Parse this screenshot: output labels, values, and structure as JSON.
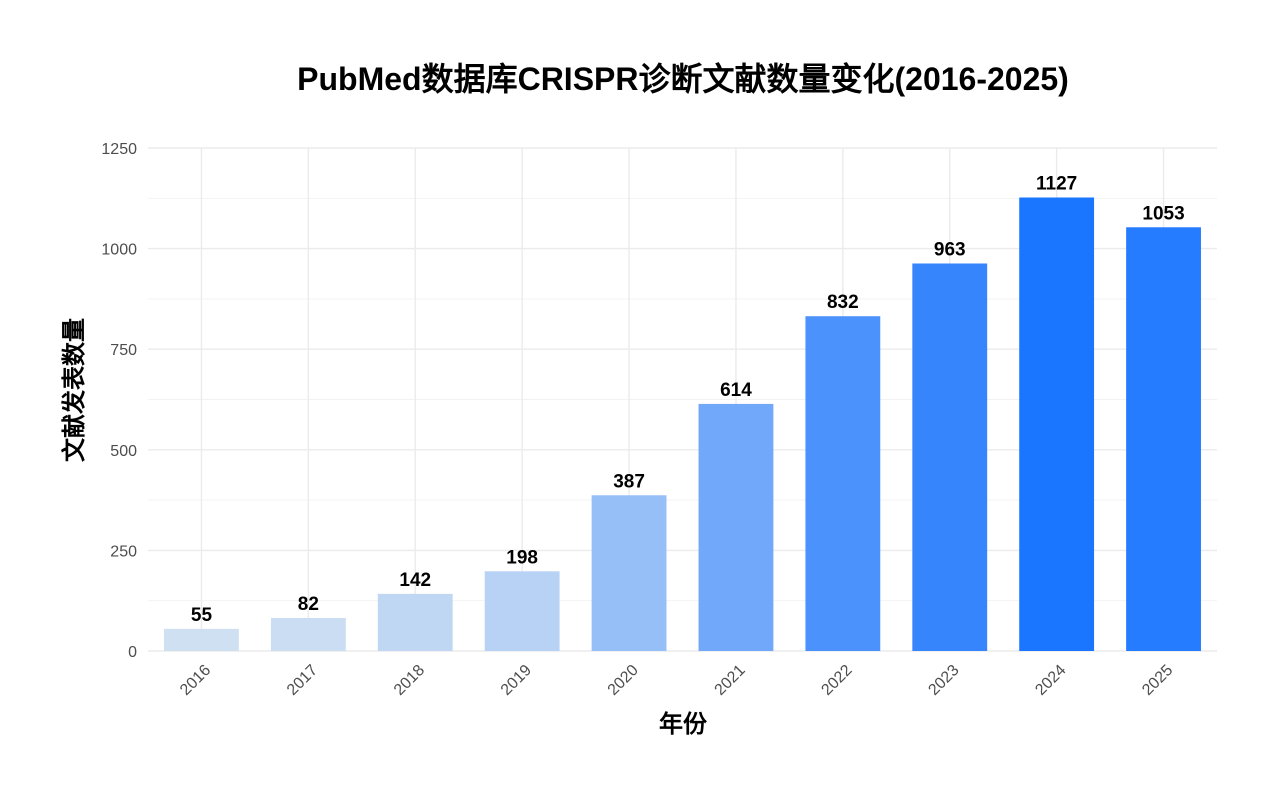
{
  "chart_data": {
    "type": "bar",
    "title": "PubMed数据库CRISPR诊断文献数量变化(2016-2025)",
    "xlabel": "年份",
    "ylabel": "文献发表数量",
    "categories": [
      "2016",
      "2017",
      "2018",
      "2019",
      "2020",
      "2021",
      "2022",
      "2023",
      "2024",
      "2025"
    ],
    "values": [
      55,
      82,
      142,
      198,
      387,
      614,
      832,
      963,
      1127,
      1053
    ],
    "data_labels": [
      "55",
      "82",
      "142",
      "198",
      "387",
      "614",
      "832",
      "963",
      "1127",
      "1053"
    ],
    "ylim": [
      0,
      1250
    ],
    "yticks": [
      "0",
      "250",
      "500",
      "750",
      "1000",
      "1250"
    ],
    "grid": true,
    "legend": "none",
    "color_scale": {
      "low": "#cfe0f3",
      "high": "#1a75ff"
    }
  }
}
